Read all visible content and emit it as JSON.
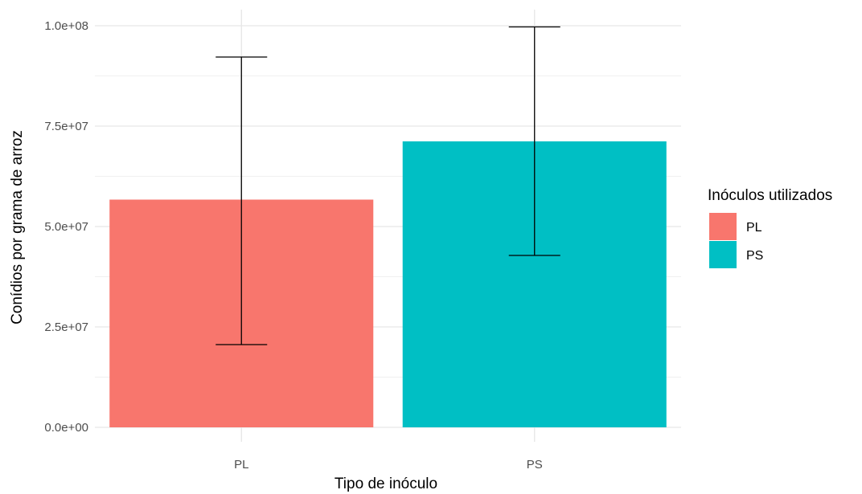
{
  "chart_data": {
    "type": "bar",
    "title": "",
    "xlabel": "Tipo de inóculo",
    "ylabel": "Conídios por grama de arroz",
    "categories": [
      "PL",
      "PS"
    ],
    "values": [
      56700000,
      71200000
    ],
    "error_bars": [
      {
        "low": 20600000,
        "high": 92200000
      },
      {
        "low": 42800000,
        "high": 99700000
      }
    ],
    "bar_colors": [
      "#F8766D",
      "#00BFC4"
    ],
    "ylim": [
      0,
      100000000
    ],
    "yticks": [
      0,
      25000000,
      50000000,
      75000000,
      100000000
    ],
    "ytick_labels": [
      "0.0e+00",
      "2.5e+07",
      "5.0e+07",
      "7.5e+07",
      "1.0e+08"
    ],
    "grid": true,
    "legend": {
      "title": "Inóculos utilizados",
      "position": "right",
      "entries": [
        {
          "label": "PL",
          "color": "#F8766D"
        },
        {
          "label": "PS",
          "color": "#00BFC4"
        }
      ]
    }
  }
}
